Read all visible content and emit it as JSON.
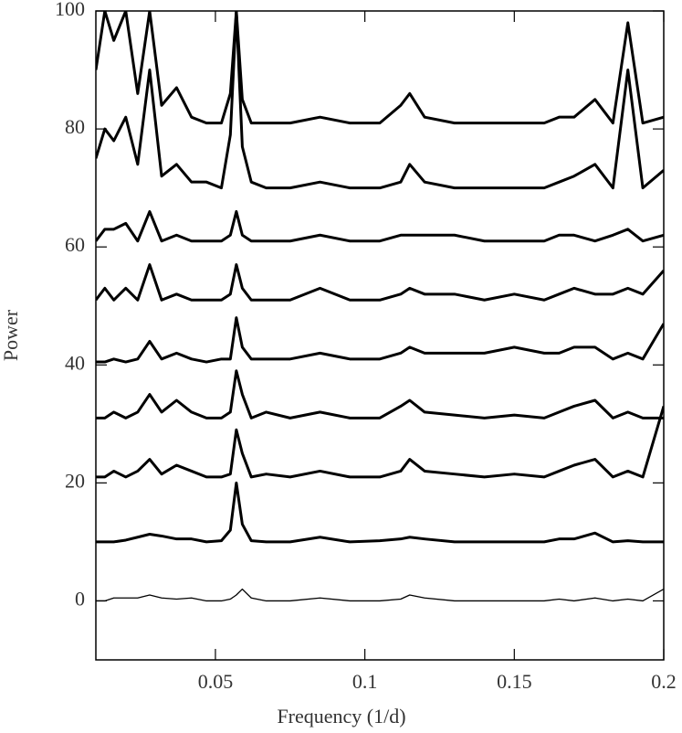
{
  "chart_data": {
    "type": "line",
    "x_label": "Frequency (1/d)",
    "y_label": "Power",
    "x": [
      0.01,
      0.013,
      0.016,
      0.02,
      0.024,
      0.028,
      0.032,
      0.037,
      0.042,
      0.047,
      0.052,
      0.055,
      0.057,
      0.059,
      0.062,
      0.067,
      0.075,
      0.085,
      0.095,
      0.105,
      0.112,
      0.115,
      0.12,
      0.13,
      0.14,
      0.15,
      0.16,
      0.165,
      0.17,
      0.177,
      0.183,
      0.188,
      0.193,
      0.2
    ],
    "series": [
      {
        "color": "#000000",
        "values": [
          0,
          0,
          0.5,
          0.5,
          0.5,
          1,
          0.5,
          0.3,
          0.5,
          0,
          0,
          0.3,
          1,
          2,
          0.5,
          0,
          0,
          0.5,
          0,
          0,
          0.3,
          1,
          0.5,
          0,
          0,
          0,
          0,
          0.3,
          0,
          0.5,
          0,
          0.3,
          0,
          2
        ]
      },
      {
        "color": "#000000",
        "values": [
          10,
          10,
          10,
          10.3,
          10.8,
          11.3,
          11,
          10.5,
          10.5,
          10,
          10.2,
          12,
          20,
          13,
          10.2,
          10,
          10,
          10.8,
          10,
          10.2,
          10.5,
          10.8,
          10.5,
          10,
          10,
          10,
          10,
          10.5,
          10.5,
          11.5,
          10,
          10.2,
          10,
          10
        ]
      },
      {
        "color": "#000000",
        "values": [
          21,
          21,
          22,
          21,
          22,
          24,
          21.5,
          23,
          22,
          21,
          21,
          21.5,
          29,
          25,
          21,
          21.5,
          21,
          22,
          21,
          21,
          22,
          24,
          22,
          21.5,
          21,
          21.5,
          21,
          22,
          23,
          24,
          21,
          22,
          21,
          33
        ]
      },
      {
        "color": "#000000",
        "values": [
          31,
          31,
          32,
          31,
          32,
          35,
          32,
          34,
          32,
          31,
          31,
          32,
          39,
          35,
          31,
          32,
          31,
          32,
          31,
          31,
          33,
          34,
          32,
          31.5,
          31,
          31.5,
          31,
          32,
          33,
          34,
          31,
          32,
          31,
          31
        ]
      },
      {
        "color": "#000000",
        "values": [
          40.5,
          40.5,
          41,
          40.5,
          41,
          44,
          41,
          42,
          41,
          40.5,
          41,
          41,
          48,
          43,
          41,
          41,
          41,
          42,
          41,
          41,
          42,
          43,
          42,
          42,
          42,
          43,
          42,
          42,
          43,
          43,
          41,
          42,
          41,
          47
        ]
      },
      {
        "color": "#000000",
        "values": [
          51,
          53,
          51,
          53,
          51,
          57,
          51,
          52,
          51,
          51,
          51,
          52,
          57,
          53,
          51,
          51,
          51,
          53,
          51,
          51,
          52,
          53,
          52,
          52,
          51,
          52,
          51,
          52,
          53,
          52,
          52,
          53,
          52,
          56
        ]
      },
      {
        "color": "#000000",
        "values": [
          61,
          63,
          63,
          64,
          61,
          66,
          61,
          62,
          61,
          61,
          61,
          62,
          66,
          62,
          61,
          61,
          61,
          62,
          61,
          61,
          62,
          62,
          62,
          62,
          61,
          61,
          61,
          62,
          62,
          61,
          62,
          63,
          61,
          62
        ]
      },
      {
        "color": "#000000",
        "values": [
          75,
          80,
          78,
          82,
          74,
          90,
          72,
          74,
          71,
          71,
          70,
          79,
          100,
          77,
          71,
          70,
          70,
          71,
          70,
          70,
          71,
          74,
          71,
          70,
          70,
          70,
          70,
          71,
          72,
          74,
          70,
          90,
          70,
          73
        ]
      },
      {
        "color": "#000000",
        "values": [
          90,
          100,
          95,
          100,
          86,
          100,
          84,
          87,
          82,
          81,
          81,
          86,
          100,
          85,
          81,
          81,
          81,
          82,
          81,
          81,
          84,
          86,
          82,
          81,
          81,
          81,
          81,
          82,
          82,
          85,
          81,
          98,
          81,
          82
        ]
      }
    ],
    "xlim": [
      0.01,
      0.2
    ],
    "xticks": [
      0.05,
      0.1,
      0.15,
      0.2
    ],
    "ylim": [
      -10,
      100
    ],
    "yticks": [
      0,
      20,
      40,
      60,
      80,
      100
    ]
  }
}
